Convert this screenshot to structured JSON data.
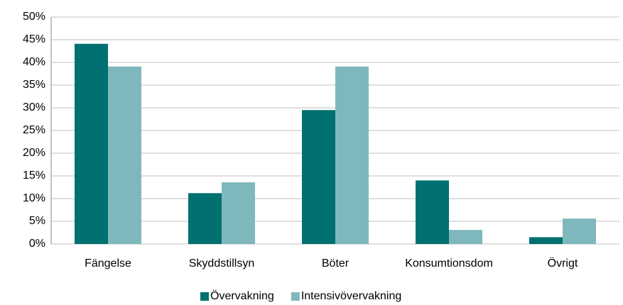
{
  "chart_data": {
    "type": "bar",
    "categories": [
      "Fängelse",
      "Skyddstillsyn",
      "Böter",
      "Konsumtionsdom",
      "Övrigt"
    ],
    "series": [
      {
        "name": "Övervakning",
        "color": "#007070",
        "values": [
          44.1,
          11.2,
          29.5,
          14,
          1.5
        ]
      },
      {
        "name": "Intensivövervakning",
        "color": "#7fb8bc",
        "values": [
          39.1,
          13.6,
          39.1,
          3.1,
          5.6
        ]
      }
    ],
    "ylim": [
      0,
      50
    ],
    "yticks": [
      {
        "value": 0,
        "label": "0%"
      },
      {
        "value": 5,
        "label": "5%"
      },
      {
        "value": 10,
        "label": "10%"
      },
      {
        "value": 15,
        "label": "15%"
      },
      {
        "value": 20,
        "label": "20%"
      },
      {
        "value": 25,
        "label": "25%"
      },
      {
        "value": 30,
        "label": "30%"
      },
      {
        "value": 35,
        "label": "35%"
      },
      {
        "value": 40,
        "label": "40%"
      },
      {
        "value": 45,
        "label": "45%"
      },
      {
        "value": 50,
        "label": "50%"
      }
    ],
    "grid": true,
    "legend": "bottom"
  }
}
